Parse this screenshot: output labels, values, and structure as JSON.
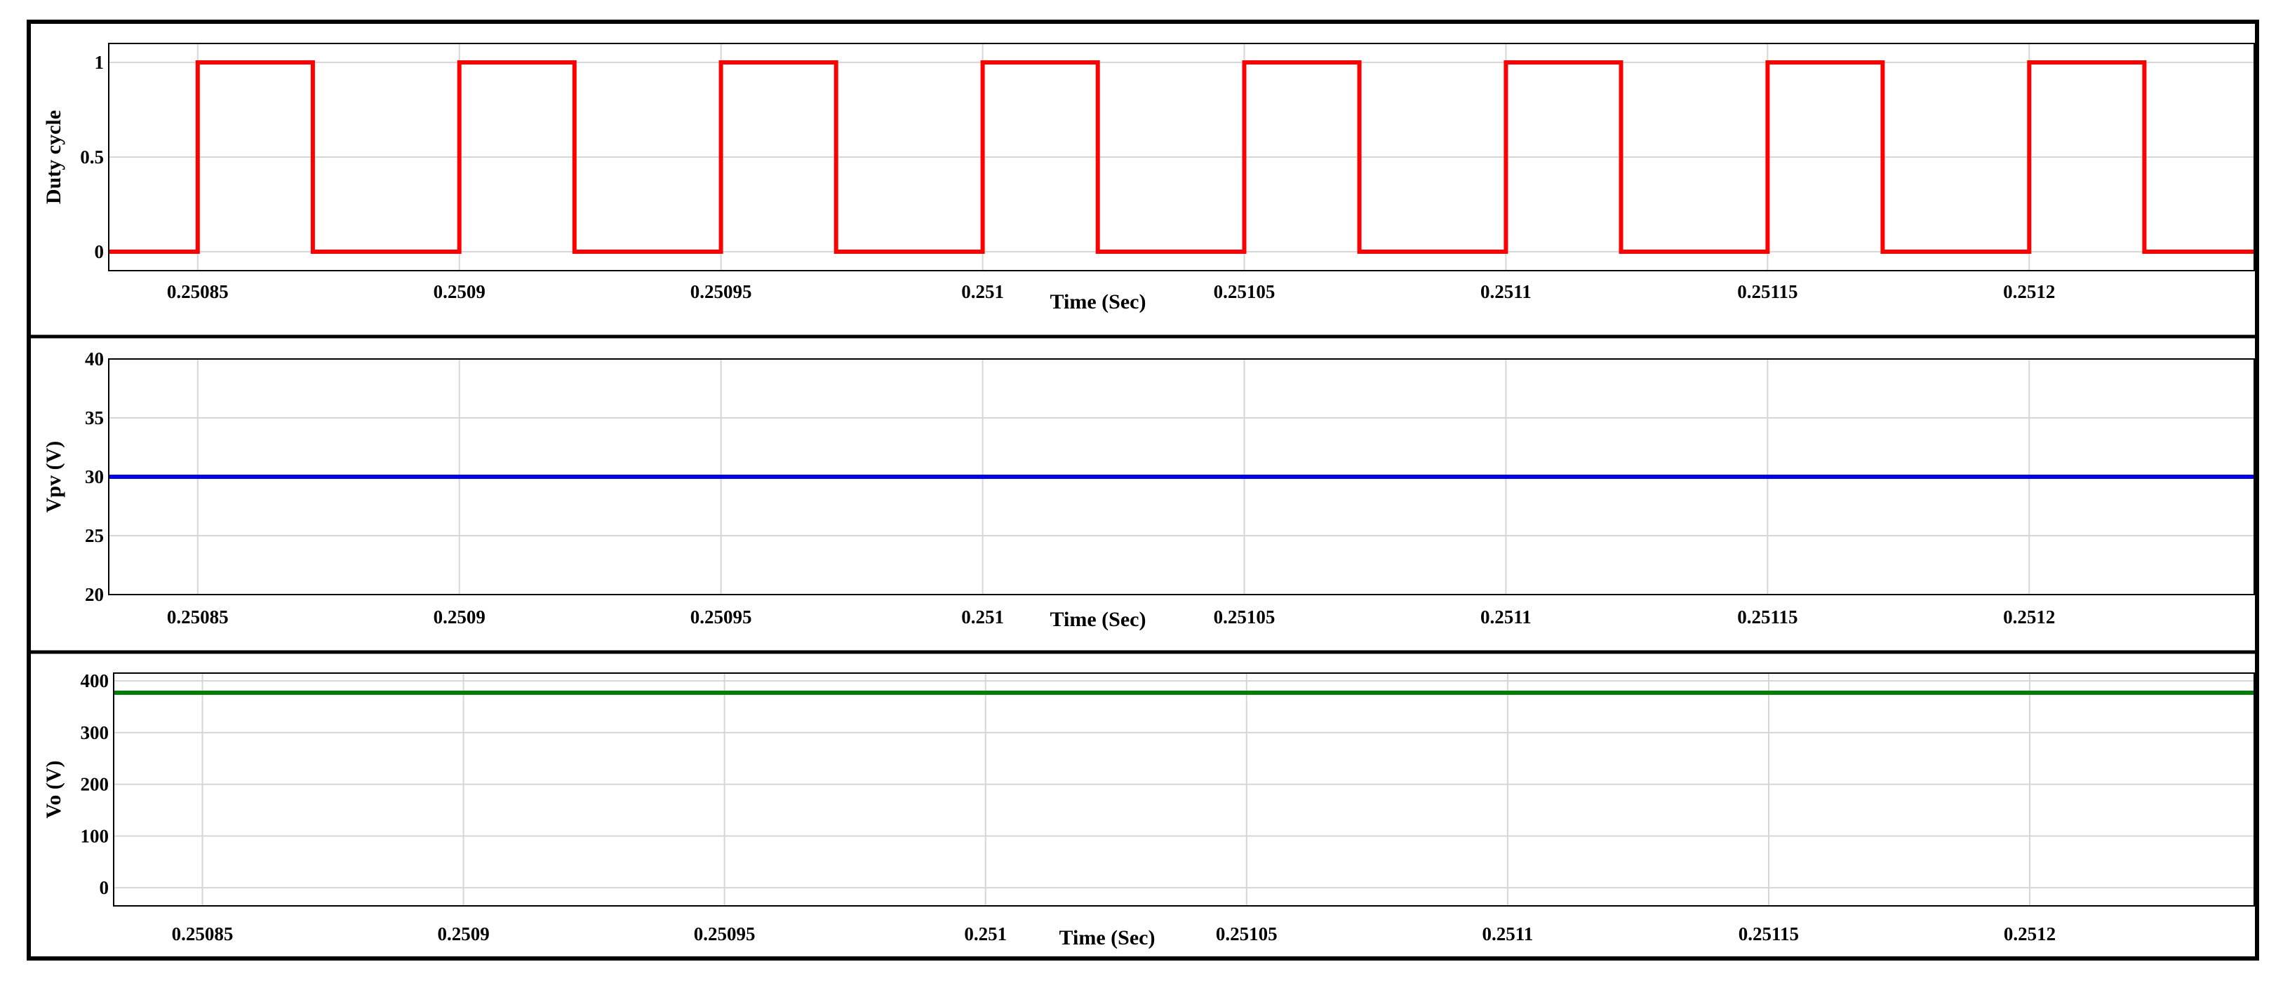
{
  "chart_data": [
    {
      "type": "line",
      "xlabel": "Time (Sec)",
      "ylabel": "Duty cycle",
      "xlim": [
        0.250833,
        0.251243
      ],
      "ylim": [
        -0.1,
        1.1
      ],
      "xticks": [
        0.25085,
        0.2509,
        0.25095,
        0.251,
        0.25105,
        0.2511,
        0.25115,
        0.2512
      ],
      "xtick_labels": [
        "0.25085",
        "0.2509",
        "0.25095",
        "0.251",
        "0.25105",
        "0.2511",
        "0.25115",
        "0.2512"
      ],
      "yticks": [
        0,
        0.5,
        1
      ],
      "ytick_labels": [
        "0",
        "0.5",
        "1"
      ],
      "grid": true,
      "color": "#ff0000",
      "series": [
        {
          "x": [
            0.250833,
            0.25085,
            0.25085,
            0.250872,
            0.250872,
            0.2509,
            0.2509,
            0.250922,
            0.250922,
            0.25095,
            0.25095,
            0.250972,
            0.250972,
            0.251,
            0.251,
            0.251022,
            0.251022,
            0.25105,
            0.25105,
            0.251072,
            0.251072,
            0.2511,
            0.2511,
            0.251122,
            0.251122,
            0.25115,
            0.25115,
            0.251172,
            0.251172,
            0.2512,
            0.2512,
            0.251222,
            0.251222,
            0.251243
          ],
          "y": [
            0,
            0,
            1,
            1,
            0,
            0,
            1,
            1,
            0,
            0,
            1,
            1,
            0,
            0,
            1,
            1,
            0,
            0,
            1,
            1,
            0,
            0,
            1,
            1,
            0,
            0,
            1,
            1,
            0,
            0,
            1,
            1,
            0,
            0
          ]
        }
      ]
    },
    {
      "type": "line",
      "xlabel": "Time (Sec)",
      "ylabel": "Vpv (V)",
      "xlim": [
        0.250833,
        0.251243
      ],
      "ylim": [
        20,
        40
      ],
      "xticks": [
        0.25085,
        0.2509,
        0.25095,
        0.251,
        0.25105,
        0.2511,
        0.25115,
        0.2512
      ],
      "xtick_labels": [
        "0.25085",
        "0.2509",
        "0.25095",
        "0.251",
        "0.25105",
        "0.2511",
        "0.25115",
        "0.2512"
      ],
      "yticks": [
        20,
        25,
        30,
        35,
        40
      ],
      "ytick_labels": [
        "20",
        "25",
        "30",
        "35",
        "40"
      ],
      "grid": true,
      "color": "#0000ff",
      "series": [
        {
          "x": [
            0.250833,
            0.251243
          ],
          "y": [
            30,
            30
          ]
        }
      ]
    },
    {
      "type": "line",
      "xlabel": "Time (Sec)",
      "ylabel": "Vo (V)",
      "xlim": [
        0.250833,
        0.251243
      ],
      "ylim": [
        -35,
        415
      ],
      "xticks": [
        0.25085,
        0.2509,
        0.25095,
        0.251,
        0.25105,
        0.2511,
        0.25115,
        0.2512
      ],
      "xtick_labels": [
        "0.25085",
        "0.2509",
        "0.25095",
        "0.251",
        "0.25105",
        "0.2511",
        "0.25115",
        "0.2512"
      ],
      "yticks": [
        0,
        100,
        200,
        300,
        400
      ],
      "ytick_labels": [
        "0",
        "100",
        "200",
        "300",
        "400"
      ],
      "grid": true,
      "color": "#008000",
      "series": [
        {
          "x": [
            0.250833,
            0.251243
          ],
          "y": [
            377,
            377
          ]
        }
      ]
    }
  ]
}
